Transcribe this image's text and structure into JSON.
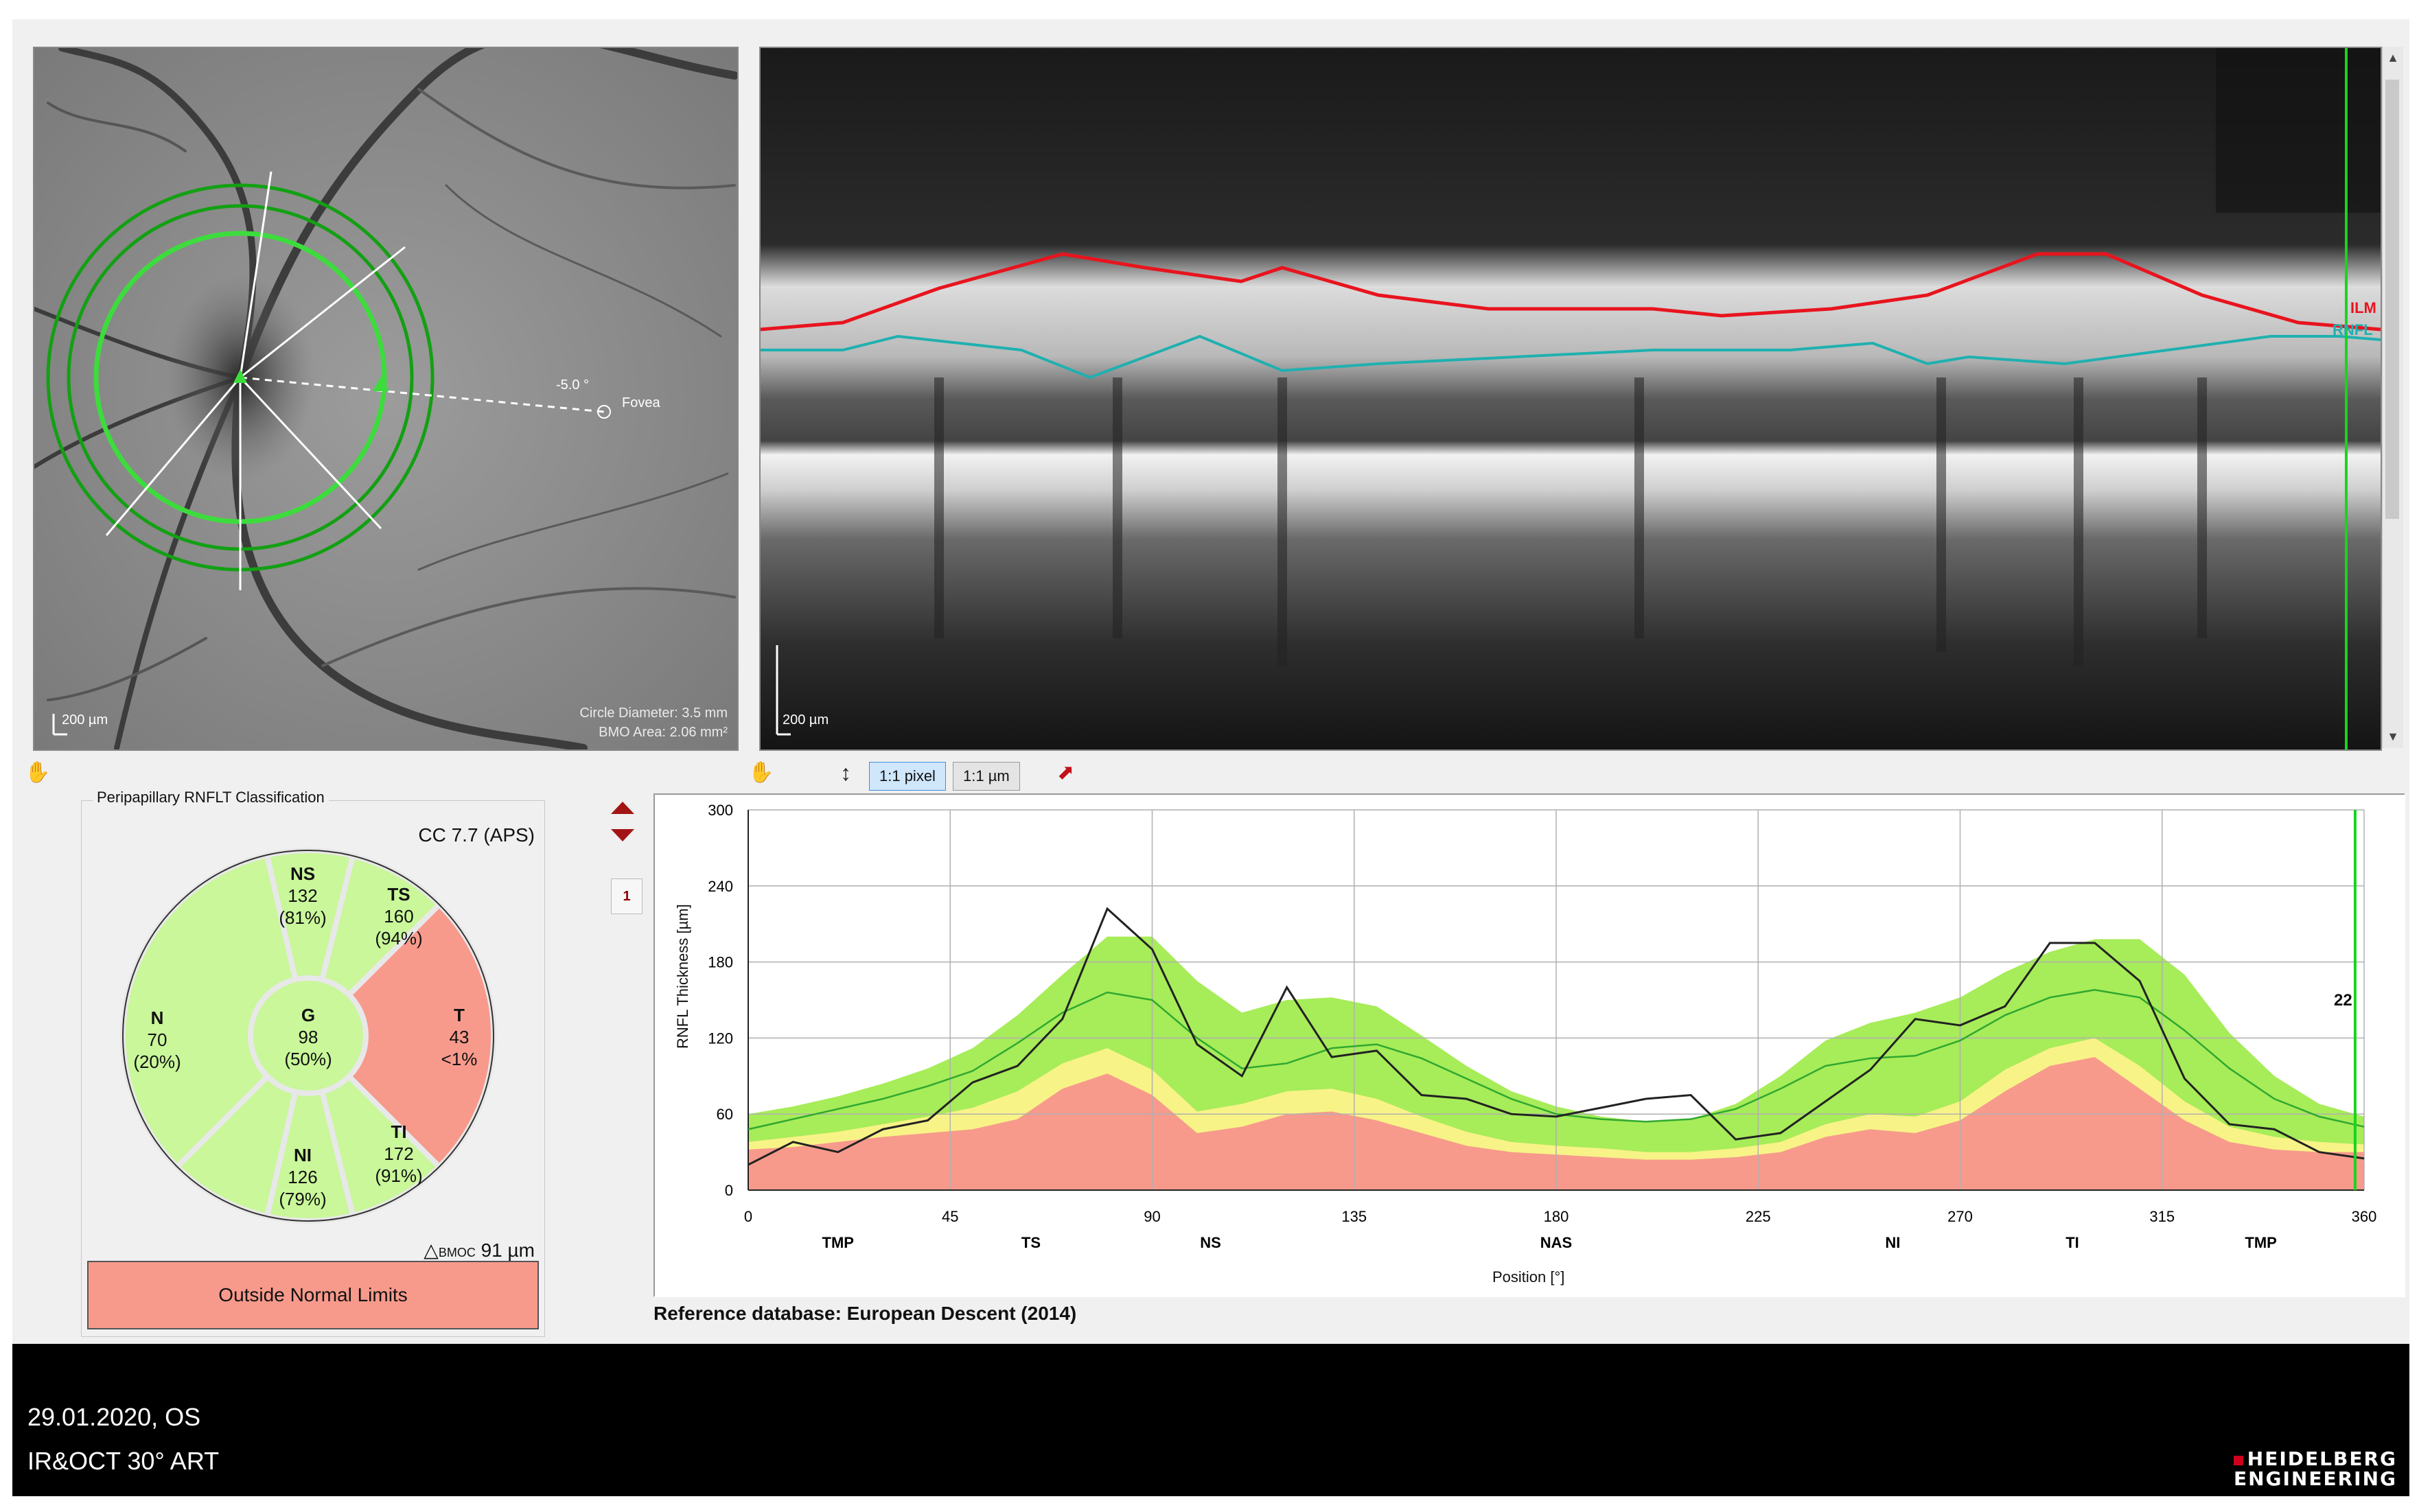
{
  "fundus": {
    "scale_label": "200 µm",
    "angle_label": "-5.0 °",
    "fovea_label": "Fovea",
    "circle_diameter": "Circle Diameter: 3.5 mm",
    "bmo_area": "BMO Area: 2.06 mm²"
  },
  "oct": {
    "scale_label": "200 µm",
    "layer_labels": [
      "ILM",
      "RNFL"
    ],
    "colors": {
      "ilm": "#e8141e",
      "rnfl": "#1fb0b0",
      "marker": "#19d41d"
    }
  },
  "toolbar": {
    "pan_icon": "hand-icon",
    "fit_icon": "vertical-fit-icon",
    "pixel_button": "1:1 pixel",
    "um_button": "1:1 µm",
    "pointer_icon": "pointer-icon"
  },
  "classification": {
    "title": "Peripapillary RNFLT Classification",
    "cc": "CC 7.7 (APS)",
    "bmoc_label": "BMOC",
    "bmoc_value": "91 µm",
    "verdict": "Outside Normal Limits",
    "sectors": [
      {
        "id": "NS",
        "value": "132",
        "percent": "(81%)",
        "color": "#c9f79a"
      },
      {
        "id": "TS",
        "value": "160",
        "percent": "(94%)",
        "color": "#c9f79a"
      },
      {
        "id": "N",
        "value": "70",
        "percent": "(20%)",
        "color": "#c9f79a"
      },
      {
        "id": "G",
        "value": "98",
        "percent": "(50%)",
        "color": "#c9f79a"
      },
      {
        "id": "T",
        "value": "43",
        "percent": "<1%",
        "color": "#f79a8c"
      },
      {
        "id": "NI",
        "value": "126",
        "percent": "(79%)",
        "color": "#c9f79a"
      },
      {
        "id": "TI",
        "value": "172",
        "percent": "(91%)",
        "color": "#c9f79a"
      }
    ]
  },
  "profile_nav": {
    "page": "1"
  },
  "chart_data": {
    "type": "area",
    "ylabel": "RNFL Thickness [µm]",
    "xlabel": "Position [°]",
    "xlim": [
      0,
      360
    ],
    "ylim": [
      0,
      300
    ],
    "x_ticks": [
      0,
      45,
      90,
      135,
      180,
      225,
      270,
      315,
      360
    ],
    "y_ticks": [
      0,
      60,
      120,
      180,
      240,
      300
    ],
    "sector_labels": [
      {
        "label": "TMP",
        "x": 20
      },
      {
        "label": "TS",
        "x": 63
      },
      {
        "label": "NS",
        "x": 103
      },
      {
        "label": "NAS",
        "x": 180
      },
      {
        "label": "NI",
        "x": 255
      },
      {
        "label": "TI",
        "x": 295
      },
      {
        "label": "TMP",
        "x": 337
      }
    ],
    "x": [
      0,
      10,
      20,
      30,
      40,
      50,
      60,
      70,
      80,
      90,
      100,
      110,
      120,
      130,
      140,
      150,
      160,
      170,
      180,
      190,
      200,
      210,
      220,
      230,
      240,
      250,
      260,
      270,
      280,
      290,
      300,
      310,
      320,
      330,
      340,
      350,
      360
    ],
    "series": [
      {
        "values": [
          32,
          34,
          38,
          42,
          45,
          48,
          56,
          80,
          92,
          75,
          45,
          50,
          60,
          62,
          55,
          45,
          35,
          30,
          28,
          26,
          24,
          24,
          26,
          30,
          42,
          48,
          45,
          55,
          78,
          98,
          105,
          80,
          55,
          38,
          32,
          30,
          30
        ]
      },
      {
        "values": [
          38,
          42,
          46,
          52,
          58,
          65,
          78,
          100,
          112,
          95,
          62,
          68,
          78,
          80,
          72,
          58,
          46,
          38,
          35,
          33,
          30,
          30,
          33,
          38,
          52,
          60,
          58,
          70,
          95,
          112,
          120,
          98,
          70,
          50,
          42,
          38,
          36
        ]
      },
      {
        "values": [
          60,
          66,
          74,
          84,
          96,
          112,
          138,
          170,
          200,
          200,
          165,
          140,
          150,
          152,
          145,
          122,
          98,
          78,
          66,
          58,
          54,
          56,
          68,
          90,
          118,
          132,
          140,
          152,
          172,
          188,
          198,
          198,
          170,
          124,
          90,
          68,
          58
        ]
      },
      {
        "values": [
          48,
          56,
          64,
          72,
          82,
          94,
          116,
          140,
          156,
          150,
          120,
          96,
          100,
          112,
          115,
          104,
          88,
          72,
          60,
          56,
          54,
          56,
          64,
          80,
          98,
          104,
          106,
          118,
          138,
          152,
          158,
          152,
          126,
          96,
          72,
          58,
          50
        ]
      },
      {
        "values": [
          20,
          38,
          30,
          48,
          55,
          85,
          98,
          135,
          222,
          190,
          115,
          90,
          160,
          105,
          110,
          75,
          72,
          60,
          58,
          65,
          72,
          75,
          40,
          45,
          70,
          95,
          135,
          130,
          145,
          195,
          195,
          165,
          88,
          52,
          48,
          30,
          25
        ]
      }
    ],
    "band_colors": [
      "#f79a8c",
      "#f8f387",
      "#a7ec59",
      "#2fa82f",
      "#222222"
    ],
    "cursor_label": "22",
    "cursor_x": 358
  },
  "footer": {
    "date": "29.01.2020, OS",
    "mode": "IR&OCT 30° ART",
    "brand_1": "HEIDELBERG",
    "brand_2": "ENGINEERING"
  },
  "reference": "Reference database: European Descent (2014)"
}
